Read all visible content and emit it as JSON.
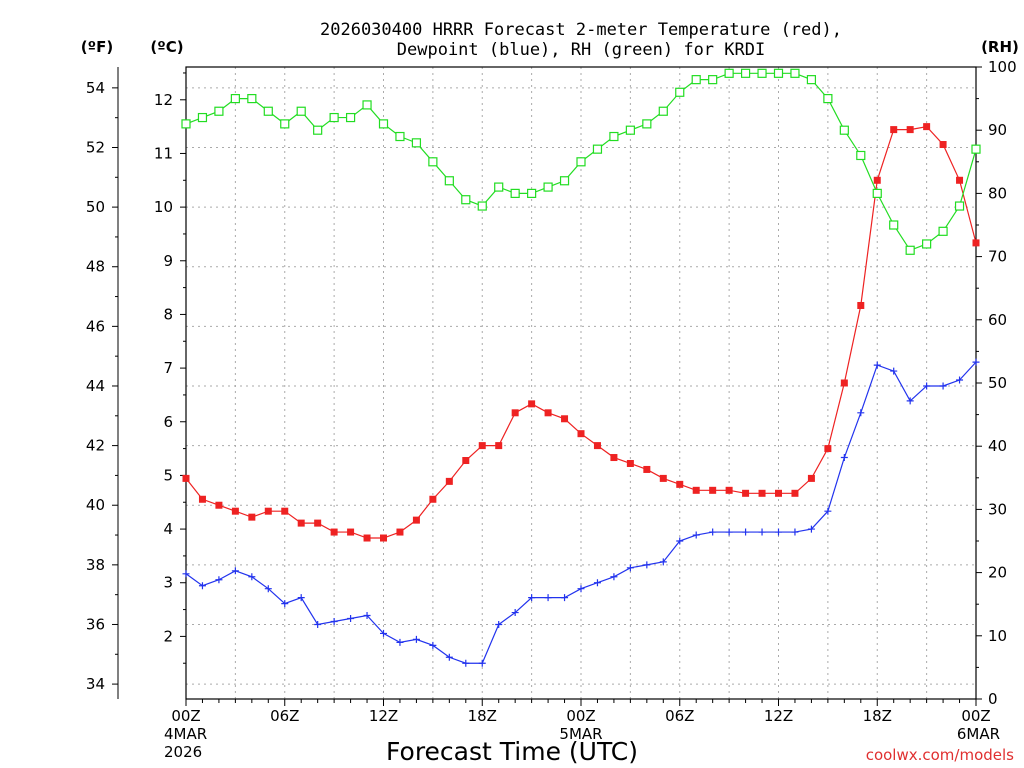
{
  "chart_data": {
    "type": "line",
    "title_lines": [
      "2026030400 HRRR Forecast 2-meter Temperature (red),",
      "Dewpoint (blue), RH (green) for KRDI"
    ],
    "xlabel": "Forecast Time (UTC)",
    "unit_f": "(ºF)",
    "unit_c": "(ºC)",
    "unit_rh": "(RH)",
    "credit": "coolwx.com/models",
    "x_hours": [
      0,
      1,
      2,
      3,
      4,
      5,
      6,
      7,
      8,
      9,
      10,
      11,
      12,
      13,
      14,
      15,
      16,
      17,
      18,
      19,
      20,
      21,
      22,
      23,
      24,
      25,
      26,
      27,
      28,
      29,
      30,
      31,
      32,
      33,
      34,
      35,
      36,
      37,
      38,
      39,
      40,
      41,
      42,
      43,
      44,
      45,
      46,
      47,
      48
    ],
    "x_ticks": [
      {
        "hour": 0,
        "label": "00Z",
        "sub1": "4MAR",
        "sub2": "2026"
      },
      {
        "hour": 6,
        "label": "06Z",
        "sub1": "",
        "sub2": ""
      },
      {
        "hour": 12,
        "label": "12Z",
        "sub1": "",
        "sub2": ""
      },
      {
        "hour": 18,
        "label": "18Z",
        "sub1": "",
        "sub2": ""
      },
      {
        "hour": 24,
        "label": "00Z",
        "sub1": "5MAR",
        "sub2": ""
      },
      {
        "hour": 30,
        "label": "06Z",
        "sub1": "",
        "sub2": ""
      },
      {
        "hour": 36,
        "label": "12Z",
        "sub1": "",
        "sub2": ""
      },
      {
        "hour": 42,
        "label": "18Z",
        "sub1": "",
        "sub2": ""
      },
      {
        "hour": 48,
        "label": "00Z",
        "sub1": "6MAR",
        "sub2": ""
      }
    ],
    "f_ticks": [
      34,
      36,
      38,
      40,
      42,
      44,
      46,
      48,
      50,
      52,
      54
    ],
    "c_ticks": [
      2,
      3,
      4,
      5,
      6,
      7,
      8,
      9,
      10,
      11,
      12
    ],
    "rh_ticks": [
      0,
      10,
      20,
      30,
      40,
      50,
      60,
      70,
      80,
      90,
      100
    ],
    "f_range": [
      33.5,
      54.7
    ],
    "rh_range": [
      0,
      100
    ],
    "series": [
      {
        "key": "temperature",
        "unit": "F",
        "color": "#ee2222",
        "marker": "filled-square",
        "values": [
          40.9,
          40.2,
          40.0,
          39.8,
          39.6,
          39.8,
          39.8,
          39.4,
          39.4,
          39.1,
          39.1,
          38.9,
          38.9,
          39.1,
          39.5,
          40.2,
          40.8,
          41.5,
          42.0,
          42.0,
          43.1,
          43.4,
          43.1,
          42.9,
          42.4,
          42.0,
          41.6,
          41.4,
          41.2,
          40.9,
          40.7,
          40.5,
          40.5,
          40.5,
          40.4,
          40.4,
          40.4,
          40.4,
          40.9,
          41.9,
          44.1,
          46.7,
          50.9,
          52.6,
          52.6,
          52.7,
          52.1,
          50.9,
          48.8
        ]
      },
      {
        "key": "dewpoint",
        "unit": "F",
        "color": "#2233ee",
        "marker": "plus",
        "values": [
          37.7,
          37.3,
          37.5,
          37.8,
          37.6,
          37.2,
          36.7,
          36.9,
          36.0,
          36.1,
          36.2,
          36.3,
          35.7,
          35.4,
          35.5,
          35.3,
          34.9,
          34.7,
          34.7,
          36.0,
          36.4,
          36.9,
          36.9,
          36.9,
          37.2,
          37.4,
          37.6,
          37.9,
          38.0,
          38.1,
          38.8,
          39.0,
          39.1,
          39.1,
          39.1,
          39.1,
          39.1,
          39.1,
          39.2,
          39.8,
          41.6,
          43.1,
          44.7,
          44.5,
          43.5,
          44.0,
          44.0,
          44.2,
          44.8
        ]
      },
      {
        "key": "rh",
        "unit": "RH",
        "color": "#22dd22",
        "marker": "open-square",
        "values": [
          91,
          92,
          93,
          95,
          95,
          93,
          91,
          93,
          90,
          92,
          92,
          94,
          91,
          89,
          88,
          85,
          82,
          79,
          78,
          81,
          80,
          80,
          81,
          82,
          85,
          87,
          89,
          90,
          91,
          93,
          96,
          98,
          98,
          99,
          99,
          99,
          99,
          99,
          98,
          95,
          90,
          86,
          80,
          75,
          71,
          72,
          74,
          78,
          87
        ]
      }
    ]
  }
}
